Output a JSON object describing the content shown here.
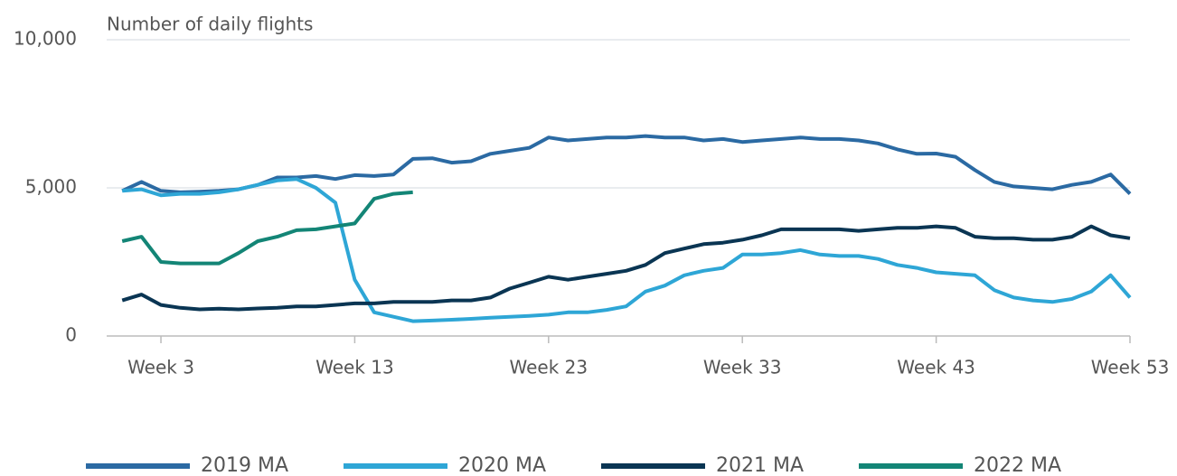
{
  "chart_data": {
    "type": "line",
    "title": "Number of daily flights",
    "x": [
      1,
      2,
      3,
      4,
      5,
      6,
      7,
      8,
      9,
      10,
      11,
      12,
      13,
      14,
      15,
      16,
      17,
      18,
      19,
      20,
      21,
      22,
      23,
      24,
      25,
      26,
      27,
      28,
      29,
      30,
      31,
      32,
      33,
      34,
      35,
      36,
      37,
      38,
      39,
      40,
      41,
      42,
      43,
      44,
      45,
      46,
      47,
      48,
      49,
      50,
      51,
      52,
      53
    ],
    "series": [
      {
        "name": "2019 MA",
        "color": "#2b6aa3",
        "values": [
          4900,
          5200,
          4900,
          4850,
          4870,
          4900,
          4950,
          5100,
          5350,
          5350,
          5400,
          5300,
          5430,
          5400,
          5450,
          5980,
          6000,
          5850,
          5900,
          6150,
          6250,
          6350,
          6700,
          6600,
          6650,
          6700,
          6700,
          6750,
          6700,
          6700,
          6600,
          6650,
          6550,
          6600,
          6650,
          6700,
          6650,
          6650,
          6600,
          6500,
          6300,
          6150,
          6160,
          6050,
          5600,
          5200,
          5050,
          5000,
          4950,
          5100,
          5200,
          5450,
          4800
        ]
      },
      {
        "name": "2020 MA",
        "color": "#2ea6d6",
        "values": [
          4900,
          4950,
          4750,
          4800,
          4800,
          4850,
          4950,
          5100,
          5250,
          5300,
          5000,
          4500,
          1900,
          800,
          650,
          500,
          520,
          550,
          580,
          620,
          650,
          680,
          720,
          800,
          800,
          880,
          1000,
          1500,
          1700,
          2050,
          2200,
          2300,
          2750,
          2750,
          2800,
          2900,
          2750,
          2700,
          2700,
          2600,
          2400,
          2300,
          2150,
          2100,
          2050,
          1550,
          1300,
          1200,
          1150,
          1250,
          1500,
          2050,
          1300
        ]
      },
      {
        "name": "2021 MA",
        "color": "#0a3553",
        "values": [
          1200,
          1400,
          1050,
          950,
          900,
          920,
          900,
          930,
          950,
          1000,
          1000,
          1050,
          1100,
          1100,
          1150,
          1150,
          1150,
          1200,
          1200,
          1300,
          1600,
          1800,
          2000,
          1900,
          2000,
          2100,
          2200,
          2400,
          2800,
          2950,
          3100,
          3150,
          3250,
          3400,
          3600,
          3600,
          3600,
          3600,
          3550,
          3600,
          3650,
          3650,
          3700,
          3650,
          3350,
          3300,
          3300,
          3250,
          3250,
          3350,
          3700,
          3400,
          3300
        ]
      },
      {
        "name": "2022 MA",
        "color": "#138576",
        "values": [
          3200,
          3350,
          2500,
          2450,
          2450,
          2450,
          2800,
          3200,
          3350,
          3570,
          3600,
          3700,
          3800,
          4630,
          4800,
          4850,
          null,
          null,
          null,
          null,
          null,
          null,
          null,
          null,
          null,
          null,
          null,
          null,
          null,
          null,
          null,
          null,
          null,
          null,
          null,
          null,
          null,
          null,
          null,
          null,
          null,
          null,
          null,
          null,
          null,
          null,
          null,
          null,
          null,
          null,
          null,
          null,
          null
        ]
      }
    ],
    "xlim": [
      0.2,
      53
    ],
    "xticks": [
      {
        "value": 3,
        "label": "Week 3"
      },
      {
        "value": 13,
        "label": "Week 13"
      },
      {
        "value": 23,
        "label": "Week 23"
      },
      {
        "value": 33,
        "label": "Week 33"
      },
      {
        "value": 43,
        "label": "Week 43"
      },
      {
        "value": 53,
        "label": "Week 53"
      }
    ],
    "ylim": [
      0,
      10000
    ],
    "yticks": [
      0,
      {
        "value": 5000,
        "label": "5,000"
      },
      {
        "value": 10000,
        "label": "10,000"
      }
    ],
    "grid": true
  }
}
